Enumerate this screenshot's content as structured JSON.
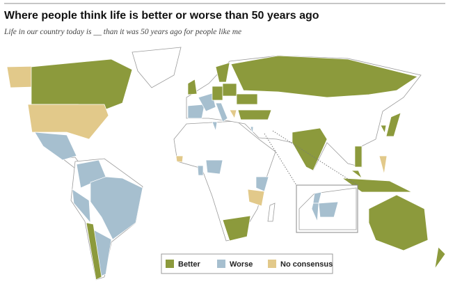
{
  "header": {
    "title": "Where people think life is better or worse than 50 years ago",
    "subtitle": "Life in our country today is __ than it was 50 years ago for people like me"
  },
  "legend": {
    "items": [
      {
        "name": "Better",
        "color": "#8c9a3c"
      },
      {
        "name": "Worse",
        "color": "#a6bfcf"
      },
      {
        "name": "No consensus",
        "color": "#e2c98a"
      }
    ]
  }
}
